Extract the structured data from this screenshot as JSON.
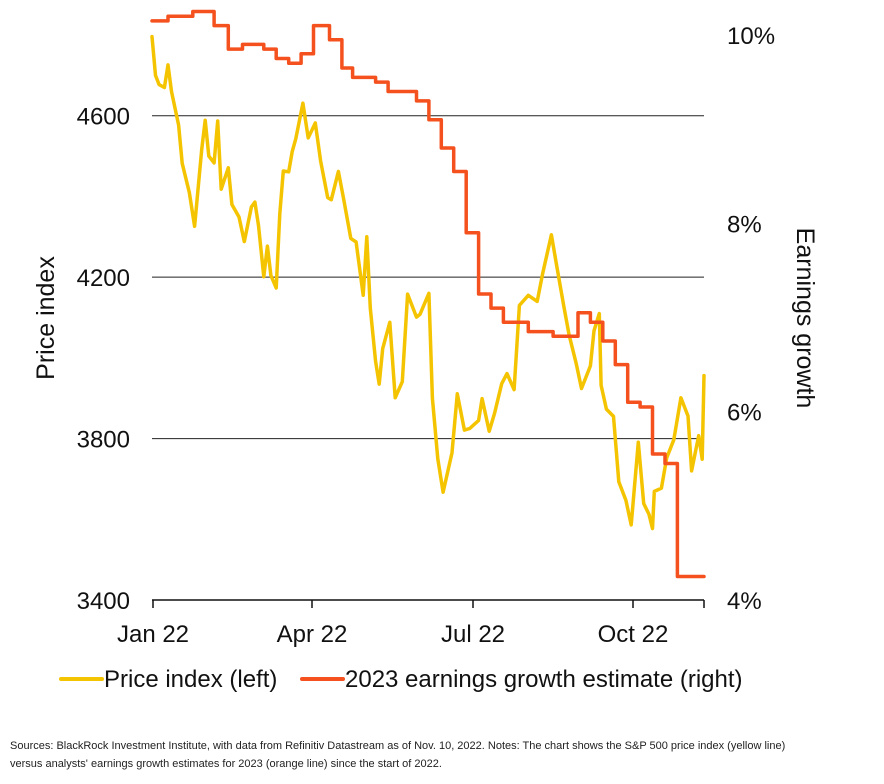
{
  "chart_data": {
    "type": "line",
    "x_ticks": [
      "Jan 22",
      "Apr 22",
      "Jul 22",
      "Oct 22"
    ],
    "y_left": {
      "label": "Price index",
      "range": [
        3400,
        4800
      ],
      "ticks": [
        "3400",
        "3800",
        "4200",
        "4600"
      ]
    },
    "y_right": {
      "label": "Earnings growth",
      "range": [
        4,
        10
      ],
      "ticks": [
        "4%",
        "6%",
        "8%",
        "10%"
      ]
    },
    "grid": "horizontal",
    "legend_position": "bottom",
    "series": [
      {
        "name": "Price index (left)",
        "axis": "left",
        "color": "#F5C400",
        "x": [
          "2022-01-03",
          "2022-01-05",
          "2022-01-07",
          "2022-01-10",
          "2022-01-12",
          "2022-01-14",
          "2022-01-18",
          "2022-01-20",
          "2022-01-24",
          "2022-01-27",
          "2022-01-31",
          "2022-02-02",
          "2022-02-04",
          "2022-02-07",
          "2022-02-09",
          "2022-02-11",
          "2022-02-15",
          "2022-02-17",
          "2022-02-21",
          "2022-02-24",
          "2022-02-28",
          "2022-03-02",
          "2022-03-04",
          "2022-03-07",
          "2022-03-09",
          "2022-03-11",
          "2022-03-14",
          "2022-03-16",
          "2022-03-18",
          "2022-03-21",
          "2022-03-23",
          "2022-03-25",
          "2022-03-29",
          "2022-04-01",
          "2022-04-05",
          "2022-04-08",
          "2022-04-12",
          "2022-04-14",
          "2022-04-18",
          "2022-04-21",
          "2022-04-25",
          "2022-04-28",
          "2022-05-02",
          "2022-05-04",
          "2022-05-06",
          "2022-05-09",
          "2022-05-11",
          "2022-05-13",
          "2022-05-17",
          "2022-05-20",
          "2022-05-24",
          "2022-05-27",
          "2022-06-01",
          "2022-06-03",
          "2022-06-08",
          "2022-06-10",
          "2022-06-13",
          "2022-06-16",
          "2022-06-21",
          "2022-06-24",
          "2022-06-28",
          "2022-07-01",
          "2022-07-06",
          "2022-07-08",
          "2022-07-12",
          "2022-07-15",
          "2022-07-19",
          "2022-07-22",
          "2022-07-26",
          "2022-07-29",
          "2022-08-03",
          "2022-08-08",
          "2022-08-11",
          "2022-08-16",
          "2022-08-19",
          "2022-08-23",
          "2022-08-26",
          "2022-08-30",
          "2022-09-02",
          "2022-09-07",
          "2022-09-09",
          "2022-09-12",
          "2022-09-13",
          "2022-09-16",
          "2022-09-20",
          "2022-09-23",
          "2022-09-27",
          "2022-09-30",
          "2022-10-04",
          "2022-10-07",
          "2022-10-10",
          "2022-10-12",
          "2022-10-13",
          "2022-10-17",
          "2022-10-20",
          "2022-10-24",
          "2022-10-28",
          "2022-11-01",
          "2022-11-03",
          "2022-11-07",
          "2022-11-09",
          "2022-11-10"
        ],
        "values": [
          4796,
          4700,
          4677,
          4670,
          4726,
          4660,
          4577,
          4482,
          4410,
          4326,
          4516,
          4589,
          4500,
          4483,
          4587,
          4418,
          4471,
          4380,
          4349,
          4288,
          4374,
          4386,
          4328,
          4201,
          4277,
          4204,
          4173,
          4357,
          4463,
          4461,
          4511,
          4543,
          4631,
          4545,
          4582,
          4488,
          4397,
          4392,
          4462,
          4393,
          4296,
          4287,
          4155,
          4300,
          4123,
          3991,
          3935,
          4023,
          4088,
          3901,
          3941,
          4158,
          4101,
          4108,
          4160,
          3900,
          3750,
          3667,
          3765,
          3911,
          3821,
          3825,
          3845,
          3899,
          3818,
          3863,
          3936,
          3961,
          3921,
          4130,
          4155,
          4140,
          4207,
          4305,
          4228,
          4128,
          4057,
          3986,
          3924,
          3980,
          4067,
          4110,
          3932,
          3873,
          3855,
          3693,
          3647,
          3586,
          3791,
          3639,
          3612,
          3577,
          3669,
          3677,
          3752,
          3797,
          3901,
          3856,
          3720,
          3807,
          3749,
          3956
        ]
      },
      {
        "name": "2023 earnings growth estimate (right)",
        "axis": "right",
        "color": "#F4511E",
        "x": [
          "2022-01-03",
          "2022-01-12",
          "2022-01-26",
          "2022-02-07",
          "2022-02-15",
          "2022-02-23",
          "2022-03-07",
          "2022-03-14",
          "2022-03-21",
          "2022-03-28",
          "2022-04-04",
          "2022-04-13",
          "2022-04-20",
          "2022-04-26",
          "2022-05-02",
          "2022-05-09",
          "2022-05-16",
          "2022-05-23",
          "2022-06-01",
          "2022-06-08",
          "2022-06-15",
          "2022-06-22",
          "2022-06-29",
          "2022-07-06",
          "2022-07-13",
          "2022-07-20",
          "2022-07-27",
          "2022-08-03",
          "2022-08-10",
          "2022-08-17",
          "2022-08-24",
          "2022-08-31",
          "2022-09-07",
          "2022-09-14",
          "2022-09-21",
          "2022-09-28",
          "2022-10-05",
          "2022-10-12",
          "2022-10-19",
          "2022-10-26",
          "2022-10-31",
          "2022-11-03",
          "2022-11-07",
          "2022-11-10"
        ],
        "values": [
          10.15,
          10.2,
          10.25,
          10.1,
          9.85,
          9.9,
          9.85,
          9.75,
          9.7,
          9.8,
          10.1,
          9.95,
          9.65,
          9.55,
          9.55,
          9.5,
          9.4,
          9.4,
          9.3,
          9.1,
          8.8,
          8.55,
          7.9,
          7.25,
          7.1,
          6.95,
          6.95,
          6.85,
          6.85,
          6.8,
          6.8,
          7.05,
          6.95,
          6.75,
          6.5,
          6.1,
          6.05,
          5.55,
          5.45,
          4.25,
          4.25,
          4.25,
          4.25,
          4.25
        ]
      }
    ]
  },
  "legend": [
    {
      "label": "Price index (left)",
      "color": "#F5C400"
    },
    {
      "label": "2023 earnings growth estimate (right)",
      "color": "#F4511E"
    }
  ],
  "source_note": "Sources: BlackRock Investment Institute, with data from Refinitiv Datastream as of Nov. 10, 2022. Notes: The chart shows the S&P 500 price index (yellow line) versus analysts' earnings growth estimates for 2023 (orange line) since the start of 2022."
}
